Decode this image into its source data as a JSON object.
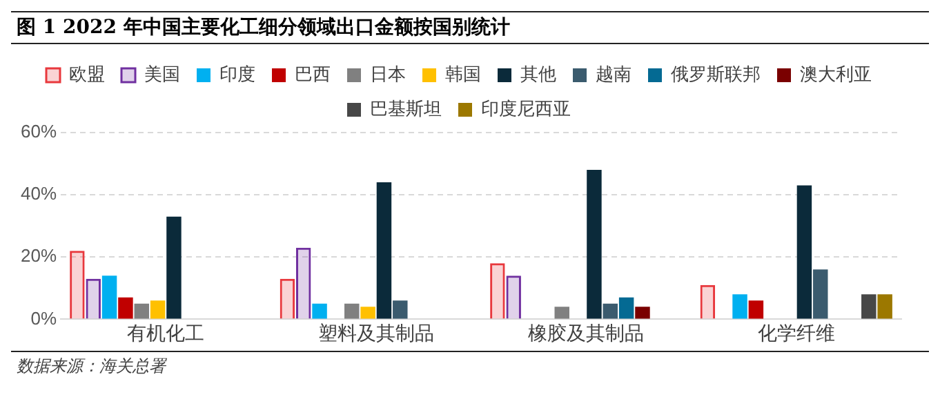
{
  "chart_data": {
    "type": "bar",
    "title": "图 1 2022 年中国主要化工细分领域出口金额按国别统计",
    "categories": [
      "有机化工",
      "塑料及其制品",
      "橡胶及其制品",
      "化学纤维"
    ],
    "series": [
      {
        "name": "欧盟",
        "color": "#e8383d",
        "values": [
          22,
          13,
          18,
          11
        ]
      },
      {
        "name": "美国",
        "color": "#7030a0",
        "values": [
          13,
          23,
          14,
          null
        ]
      },
      {
        "name": "印度",
        "color": "#00b0f0",
        "values": [
          14,
          5,
          null,
          8
        ]
      },
      {
        "name": "巴西",
        "color": "#c00000",
        "values": [
          7,
          null,
          null,
          6
        ]
      },
      {
        "name": "日本",
        "color": "#808080",
        "values": [
          5,
          5,
          4,
          null
        ]
      },
      {
        "name": "韩国",
        "color": "#ffc000",
        "values": [
          6,
          4,
          null,
          null
        ]
      },
      {
        "name": "其他",
        "color": "#0b2a3a",
        "values": [
          33,
          44,
          48,
          43
        ]
      },
      {
        "name": "越南",
        "color": "#3b5b6e",
        "values": [
          null,
          6,
          5,
          16
        ]
      },
      {
        "name": "俄罗斯联邦",
        "color": "#046a93",
        "values": [
          null,
          null,
          7,
          null
        ]
      },
      {
        "name": "澳大利亚",
        "color": "#7a0000",
        "values": [
          null,
          null,
          4,
          null
        ]
      },
      {
        "name": "巴基斯坦",
        "color": "#474747",
        "values": [
          null,
          null,
          null,
          8
        ]
      },
      {
        "name": "印度尼西亚",
        "color": "#9c7800",
        "values": [
          null,
          null,
          null,
          8
        ]
      }
    ],
    "ylim": [
      0,
      60
    ],
    "yticks": [
      {
        "value": 0,
        "label": "0%"
      },
      {
        "value": 20,
        "label": "20%"
      },
      {
        "value": 40,
        "label": "40%"
      },
      {
        "value": 60,
        "label": "60%"
      }
    ],
    "grid": "y",
    "legend": "top",
    "annotations": [
      "数据来源：海关总署"
    ]
  }
}
